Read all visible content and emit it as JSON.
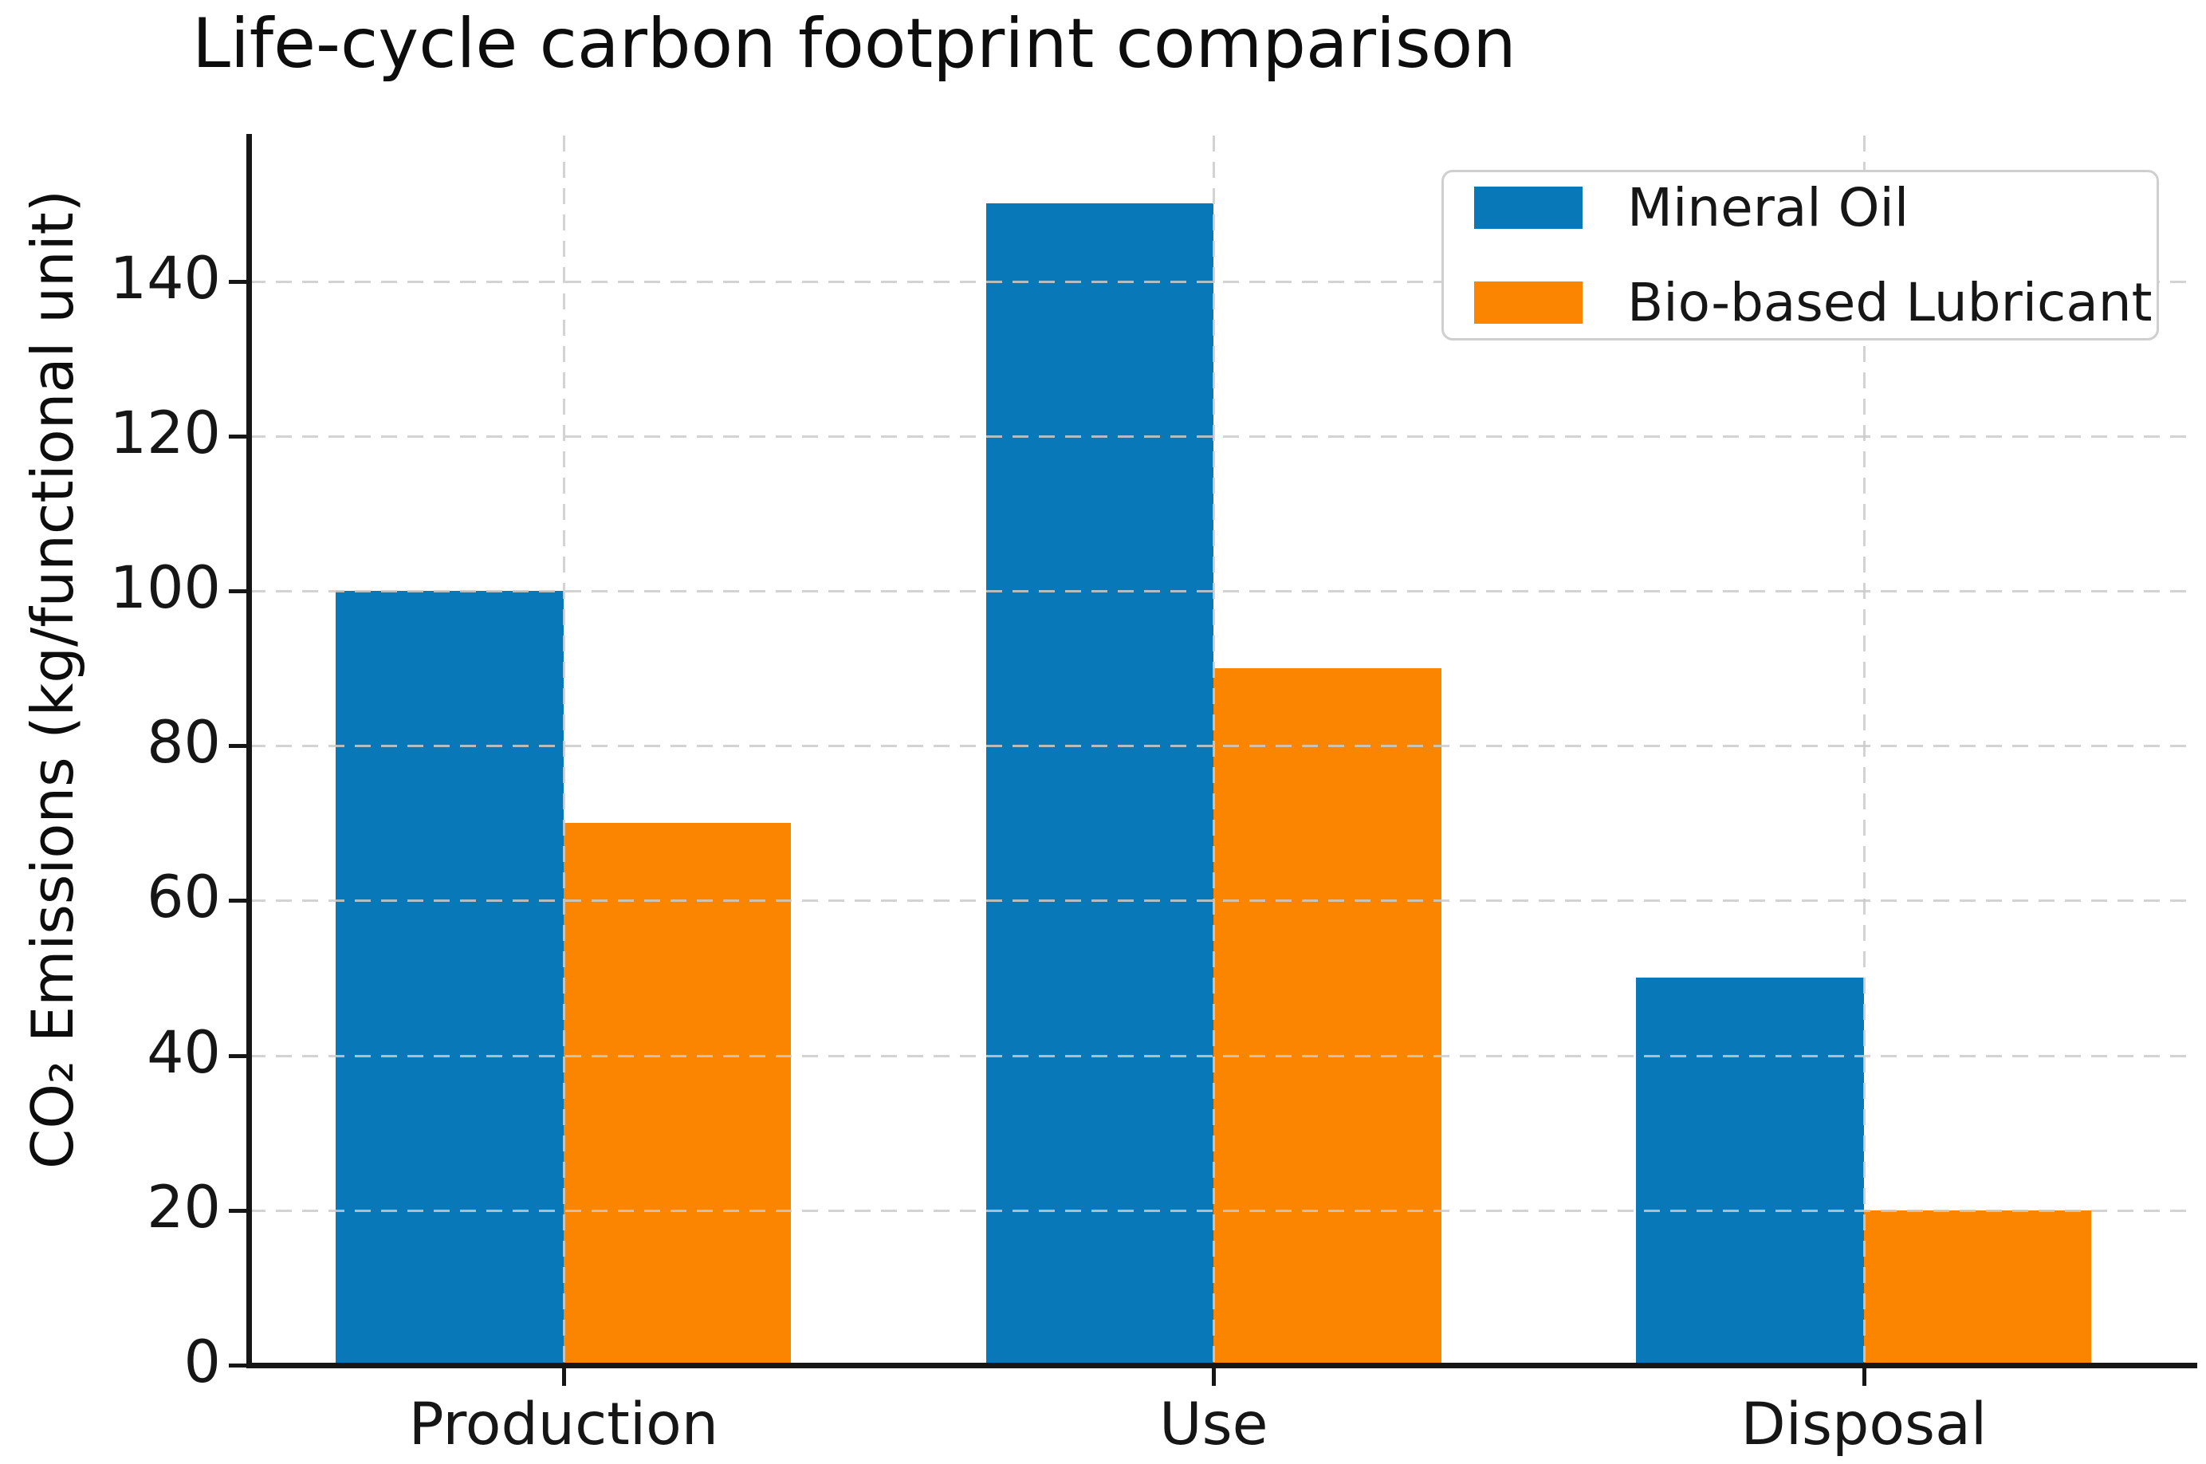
{
  "chart_data": {
    "type": "bar",
    "title": "Life-cycle carbon footprint comparison",
    "ylabel": "CO₂ Emissions (kg/functional unit)",
    "xlabel": "",
    "categories": [
      "Production",
      "Use",
      "Disposal"
    ],
    "series": [
      {
        "name": "Mineral Oil",
        "color": "#0878b8",
        "values": [
          100,
          150,
          50
        ]
      },
      {
        "name": "Bio-based Lubricant",
        "color": "#fc8500",
        "values": [
          70,
          90,
          20
        ]
      }
    ],
    "yticks": [
      0,
      20,
      40,
      60,
      80,
      100,
      120,
      140
    ],
    "ylim": [
      0,
      158.8
    ],
    "grid": true,
    "grid_style": "dashed",
    "grid_color": "#cbcbcb",
    "legend_position": "upper right",
    "bar_width_ratio": 0.35
  }
}
